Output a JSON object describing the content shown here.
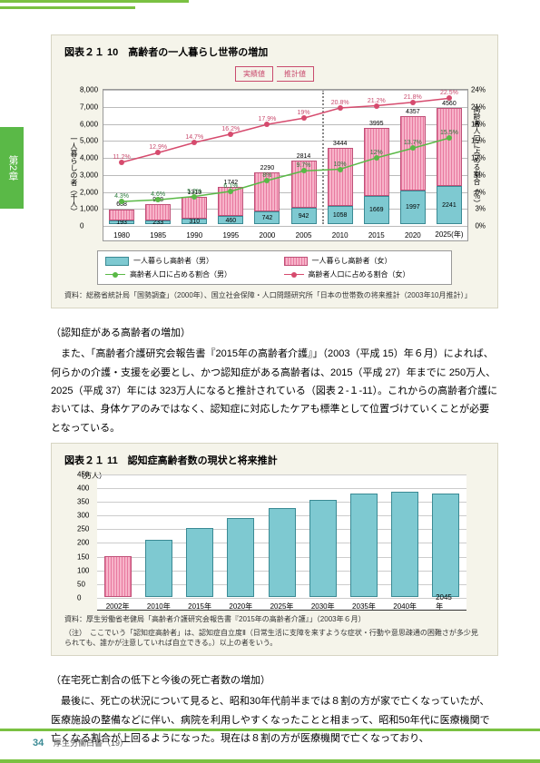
{
  "sidebar": {
    "label": "第2章"
  },
  "chart1": {
    "title": "図表２１ 10　高齢者の一人暮らし世帯の増加",
    "y_left_label": "一人暮らしの者（千人）",
    "y_right_label": "高齢者人口に占める割合（％）",
    "y_left_ticks": [
      0,
      1000,
      2000,
      3000,
      4000,
      5000,
      6000,
      7000,
      8000
    ],
    "y_right_ticks": [
      0,
      3,
      6,
      9,
      12,
      15,
      18,
      21,
      24
    ],
    "years": [
      "1980",
      "1985",
      "1990",
      "1995",
      "2000",
      "2005",
      "2010",
      "2015",
      "2020",
      "2025(年)"
    ],
    "male_bars": [
      193,
      233,
      310,
      460,
      742,
      942,
      1058,
      1669,
      1997,
      2241
    ],
    "female_bars": [
      688,
      948,
      1313,
      1742,
      2290,
      2814,
      3444,
      3995,
      4357,
      4560
    ],
    "male_pct": [
      4.3,
      4.6,
      5.2,
      6.1,
      8.0,
      9.7,
      10.0,
      12.0,
      13.7,
      15.5
    ],
    "female_pct": [
      11.2,
      12.9,
      14.7,
      16.2,
      17.9,
      19.0,
      20.8,
      21.2,
      21.8,
      22.5
    ],
    "banner_actual": "実績値",
    "banner_proj": "推計値",
    "legend": {
      "bar_m": "一人暮らし高齢者（男）",
      "bar_f": "一人暮らし高齢者（女）",
      "line_m": "高齢者人口に占める割合（男）",
      "line_f": "高齢者人口に占める割合（女）"
    },
    "source": "資料：総務省統計局「国勢調査」（2000年）、国立社会保障・人口問題研究所「日本の世帯数の将来推計（2003年10月推計）」"
  },
  "section1": {
    "heading": "（認知症がある高齢者の増加）",
    "body": "　また、「高齢者介護研究会報告書『2015年の高齢者介護』」（2003（平成 15）年６月）によれば、何らかの介護・支援を必要とし、かつ認知症がある高齢者は、2015（平成 27）年までに 250万人、2025（平成 37）年には 323万人になると推計されている（図表２-１-11）。これからの高齢者介護においては、身体ケアのみではなく、認知症に対応したケアも標準として位置づけていくことが必要となっている。"
  },
  "chart2": {
    "title": "図表２１ 11　認知症高齢者数の現状と将来推計",
    "y_label": "（万人）",
    "y_ticks": [
      0,
      50,
      100,
      150,
      200,
      250,
      300,
      350,
      400,
      450
    ],
    "years": [
      "2002年",
      "2010年",
      "2015年",
      "2020年",
      "2025年",
      "2030年",
      "2035年",
      "2040年",
      "2045年"
    ],
    "values": [
      149,
      208,
      250,
      289,
      323,
      353,
      376,
      385,
      378
    ],
    "source": "資料：厚生労働省老健局「高齢者介護研究会報告書『2015年の高齢者介護』」（2003年６月）",
    "note": "（注）　ここでいう「認知症高齢者」は、認知症自立度Ⅱ（日常生活に支障を来すような症状・行動や意思疎通の困難さが多少見られても、誰かが注意していれば自立できる。）以上の者をいう。"
  },
  "section2": {
    "heading": "（在宅死亡割合の低下と今後の死亡者数の増加）",
    "body": "　最後に、死亡の状況について見ると、昭和30年代前半までは８割の方が家で亡くなっていたが、医療施設の整備などに伴い、病院を利用しやすくなったことと相まって、昭和50年代に医療機関で亡くなる割合が上回るようになった。現在は８割の方が医療機関で亡くなっており、"
  },
  "footer": {
    "page": "34",
    "doc": "厚生労働白書（19）"
  }
}
